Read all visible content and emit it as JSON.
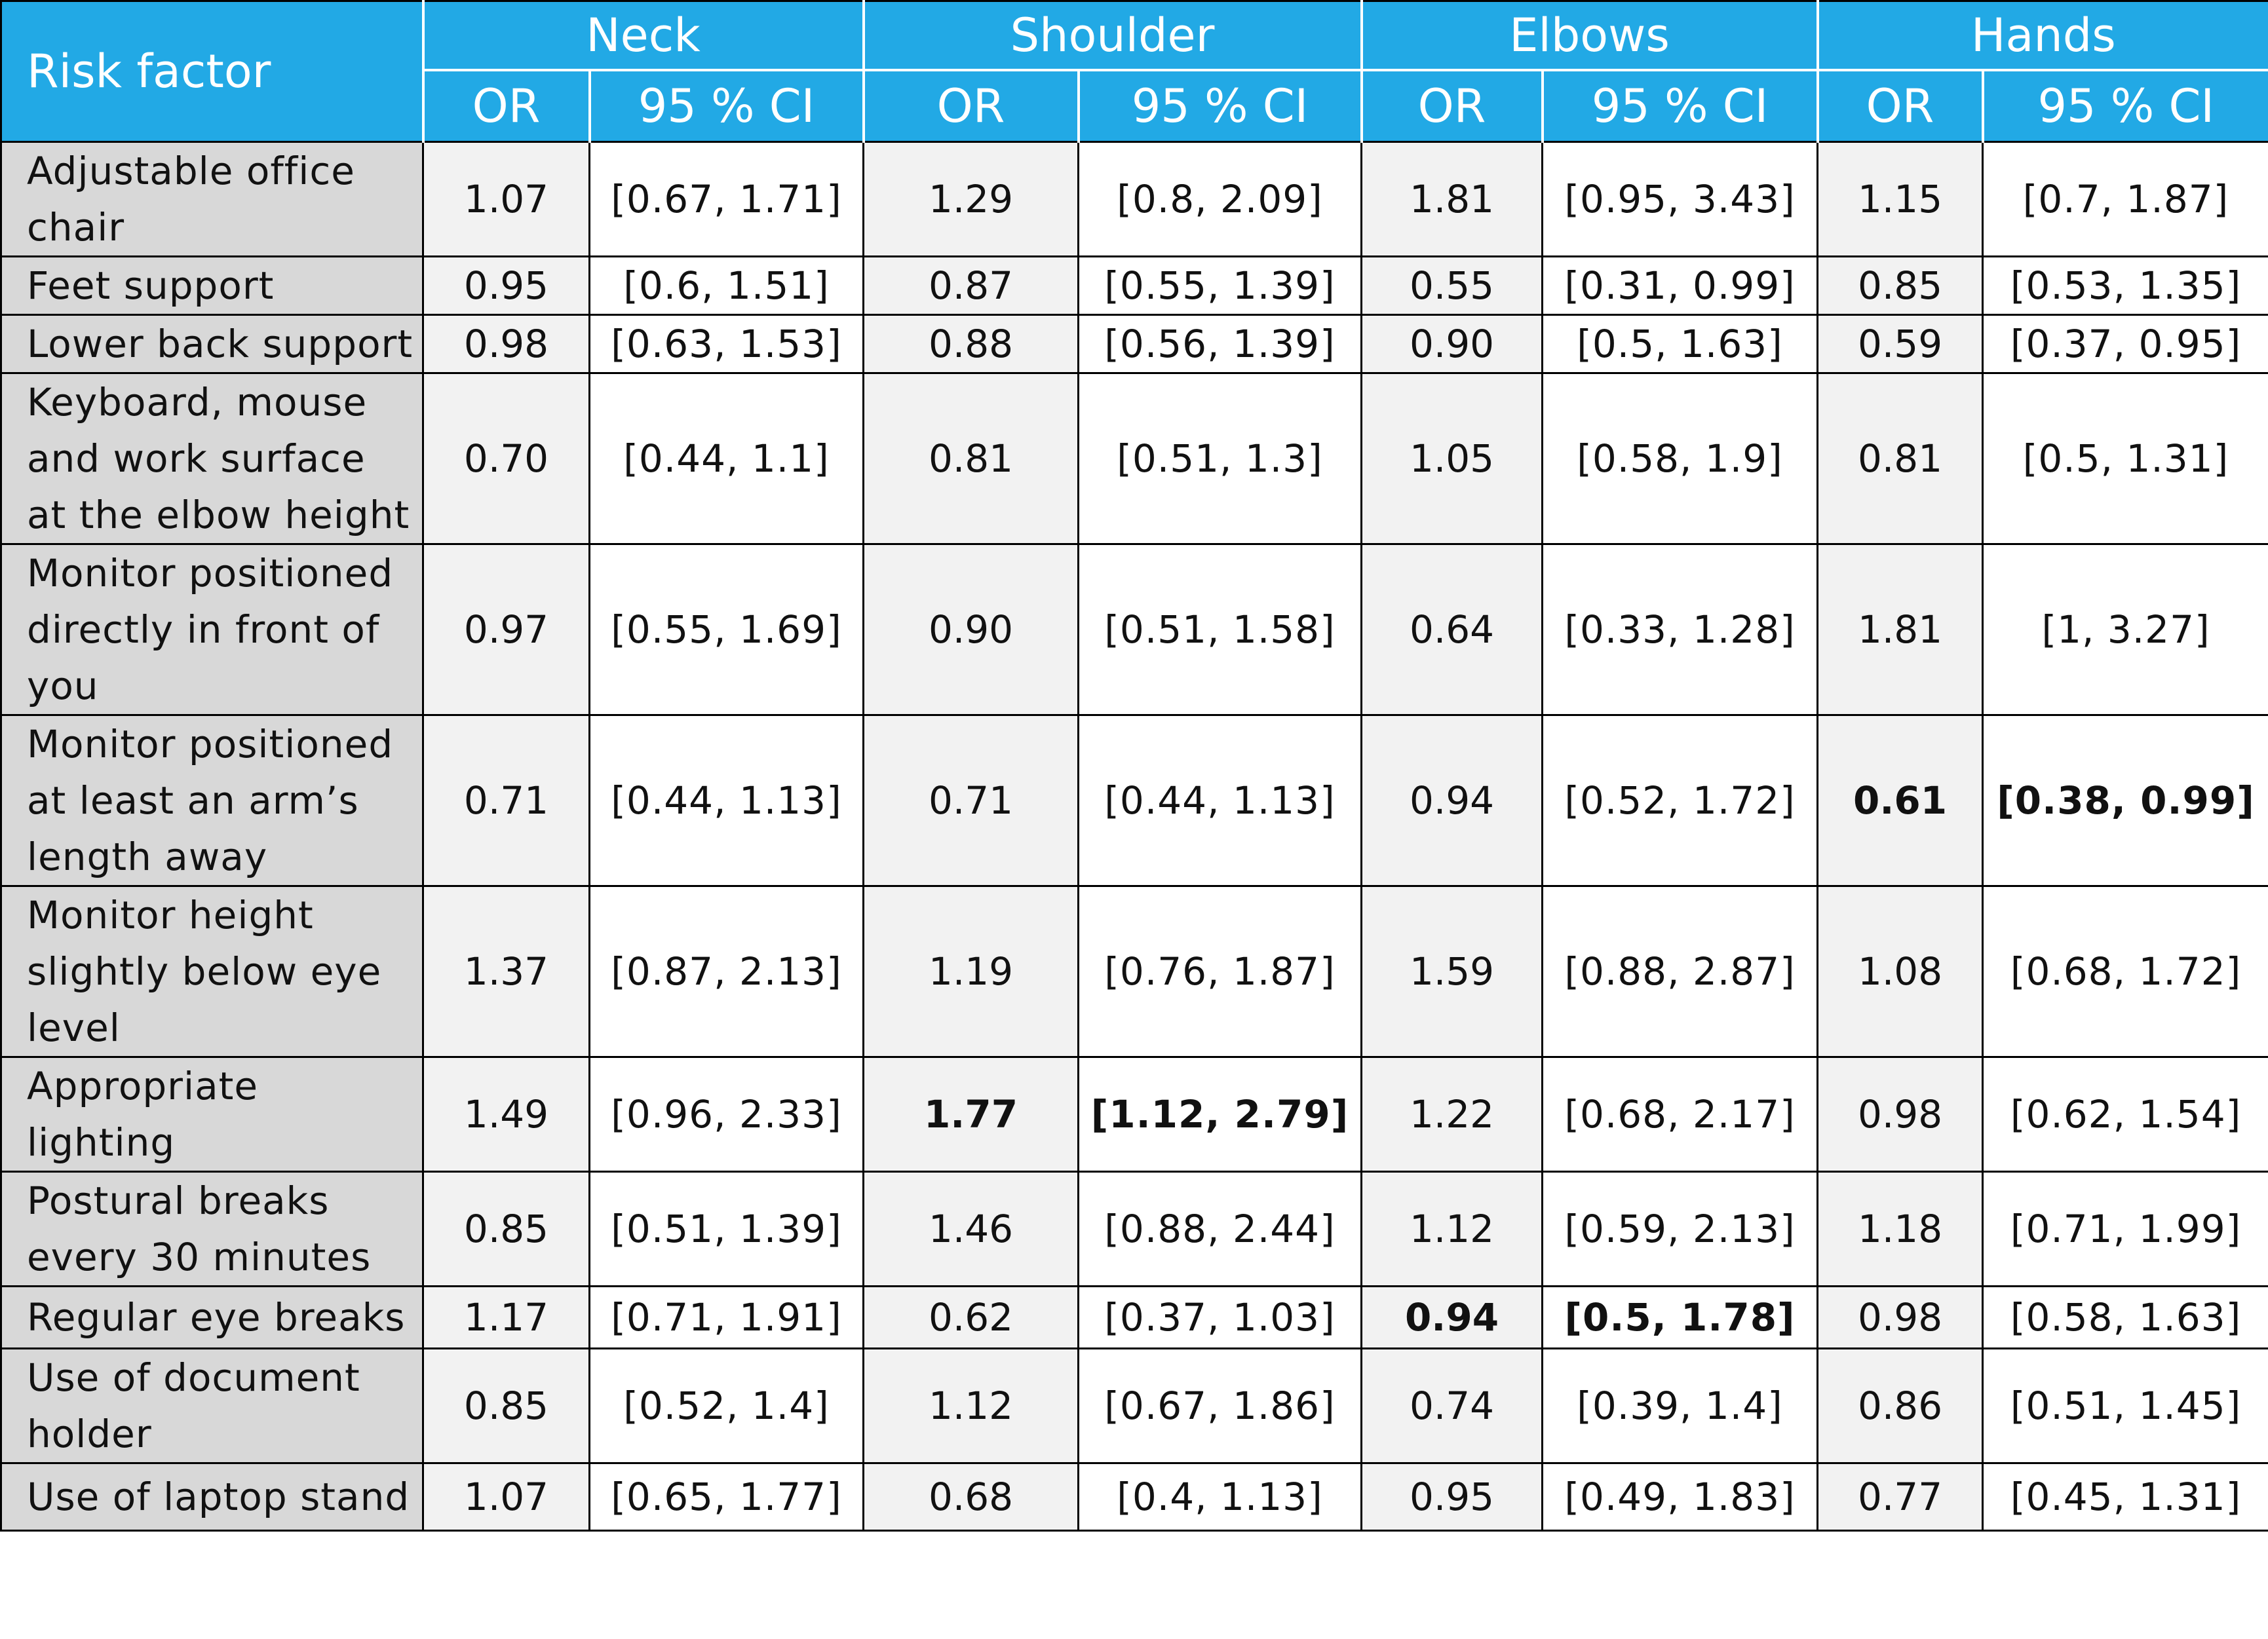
{
  "table": {
    "risk_factor_header": "Risk factor",
    "regions": [
      "Neck",
      "Shoulder",
      "Elbows",
      "Hands"
    ],
    "sub_headers": [
      "OR",
      "95 % CI",
      "OR",
      "95 % CI",
      "OR",
      "95 % CI",
      "OR",
      "95 % CI"
    ],
    "rows": [
      {
        "factor": "Adjustable office chair",
        "cells": [
          {
            "v": "1.07"
          },
          {
            "v": "[0.67, 1.71]"
          },
          {
            "v": "1.29"
          },
          {
            "v": "[0.8, 2.09]"
          },
          {
            "v": "1.81"
          },
          {
            "v": "[0.95, 3.43]"
          },
          {
            "v": "1.15"
          },
          {
            "v": "[0.7, 1.87]"
          }
        ]
      },
      {
        "factor": "Feet support",
        "cells": [
          {
            "v": "0.95"
          },
          {
            "v": "[0.6, 1.51]"
          },
          {
            "v": "0.87"
          },
          {
            "v": "[0.55, 1.39]"
          },
          {
            "v": "0.55"
          },
          {
            "v": "[0.31, 0.99]"
          },
          {
            "v": "0.85"
          },
          {
            "v": "[0.53, 1.35]"
          }
        ]
      },
      {
        "factor": "Lower back support",
        "cells": [
          {
            "v": "0.98"
          },
          {
            "v": "[0.63, 1.53]"
          },
          {
            "v": "0.88"
          },
          {
            "v": "[0.56, 1.39]"
          },
          {
            "v": "0.90"
          },
          {
            "v": "[0.5, 1.63]"
          },
          {
            "v": "0.59"
          },
          {
            "v": "[0.37, 0.95]"
          }
        ]
      },
      {
        "factor": "Keyboard, mouse and work surface at the elbow height",
        "cells": [
          {
            "v": "0.70"
          },
          {
            "v": "[0.44, 1.1]"
          },
          {
            "v": "0.81"
          },
          {
            "v": "[0.51, 1.3]"
          },
          {
            "v": "1.05"
          },
          {
            "v": "[0.58, 1.9]"
          },
          {
            "v": "0.81"
          },
          {
            "v": "[0.5, 1.31]"
          }
        ]
      },
      {
        "factor": "Monitor positioned directly in front of you",
        "cells": [
          {
            "v": "0.97"
          },
          {
            "v": "[0.55, 1.69]"
          },
          {
            "v": "0.90"
          },
          {
            "v": "[0.51, 1.58]"
          },
          {
            "v": "0.64"
          },
          {
            "v": "[0.33, 1.28]"
          },
          {
            "v": "1.81"
          },
          {
            "v": "[1, 3.27]"
          }
        ]
      },
      {
        "factor": "Monitor positioned at least an arm’s length away",
        "cells": [
          {
            "v": "0.71"
          },
          {
            "v": "[0.44, 1.13]"
          },
          {
            "v": "0.71"
          },
          {
            "v": "[0.44, 1.13]"
          },
          {
            "v": "0.94"
          },
          {
            "v": "[0.52, 1.72]"
          },
          {
            "v": "0.61",
            "bold": true
          },
          {
            "v": "[0.38, 0.99]",
            "bold": true
          }
        ]
      },
      {
        "factor": "Monitor height slightly below eye level",
        "cells": [
          {
            "v": "1.37"
          },
          {
            "v": "[0.87, 2.13]"
          },
          {
            "v": "1.19"
          },
          {
            "v": "[0.76, 1.87]"
          },
          {
            "v": "1.59"
          },
          {
            "v": "[0.88, 2.87]"
          },
          {
            "v": "1.08"
          },
          {
            "v": "[0.68, 1.72]"
          }
        ]
      },
      {
        "factor": "Appropriate lighting",
        "cells": [
          {
            "v": "1.49"
          },
          {
            "v": "[0.96, 2.33]"
          },
          {
            "v": "1.77",
            "bold": true
          },
          {
            "v": "[1.12, 2.79]",
            "bold": true
          },
          {
            "v": "1.22"
          },
          {
            "v": "[0.68, 2.17]"
          },
          {
            "v": "0.98"
          },
          {
            "v": "[0.62, 1.54]"
          }
        ]
      },
      {
        "factor": "Postural breaks every 30 minutes",
        "cells": [
          {
            "v": "0.85"
          },
          {
            "v": "[0.51, 1.39]"
          },
          {
            "v": "1.46"
          },
          {
            "v": "[0.88, 2.44]"
          },
          {
            "v": "1.12"
          },
          {
            "v": "[0.59, 2.13]"
          },
          {
            "v": "1.18"
          },
          {
            "v": "[0.71, 1.99]"
          }
        ]
      },
      {
        "factor": "Regular eye breaks",
        "cells": [
          {
            "v": "1.17"
          },
          {
            "v": "[0.71, 1.91]"
          },
          {
            "v": "0.62"
          },
          {
            "v": "[0.37, 1.03]"
          },
          {
            "v": "0.94",
            "bold": true
          },
          {
            "v": "[0.5, 1.78]",
            "bold": true
          },
          {
            "v": "0.98"
          },
          {
            "v": "[0.58, 1.63]"
          }
        ]
      },
      {
        "factor": "Use of document holder",
        "cells": [
          {
            "v": "0.85"
          },
          {
            "v": "[0.52, 1.4]"
          },
          {
            "v": "1.12"
          },
          {
            "v": "[0.67, 1.86]"
          },
          {
            "v": "0.74"
          },
          {
            "v": "[0.39, 1.4]"
          },
          {
            "v": "0.86"
          },
          {
            "v": "[0.51, 1.45]"
          }
        ]
      },
      {
        "factor": "Use of laptop stand",
        "cells": [
          {
            "v": "1.07"
          },
          {
            "v": "[0.65, 1.77]"
          },
          {
            "v": "0.68"
          },
          {
            "v": "[0.4, 1.13]"
          },
          {
            "v": "0.95"
          },
          {
            "v": "[0.49, 1.83]"
          },
          {
            "v": "0.77"
          },
          {
            "v": "[0.45, 1.31]"
          }
        ]
      }
    ]
  },
  "colors": {
    "header_bg": "#22a9e5",
    "header_text": "#ffffff",
    "factor_bg": "#d8d8d8",
    "or_bg": "#f2f2f2",
    "ci_bg": "#ffffff"
  }
}
